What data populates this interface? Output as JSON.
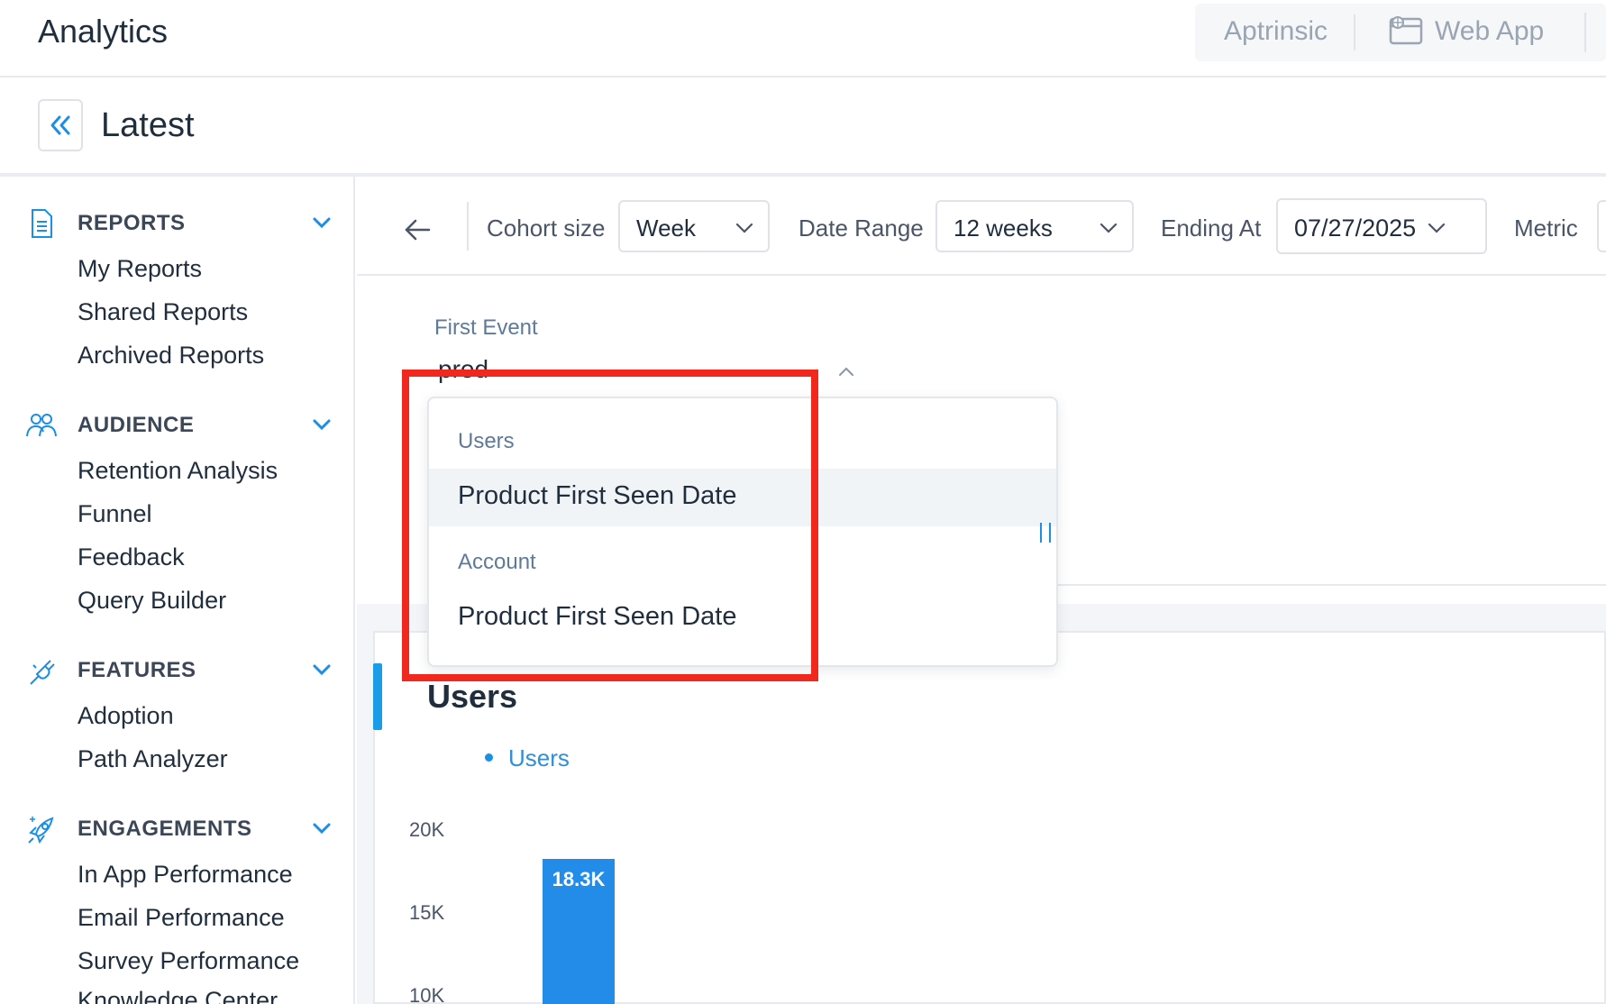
{
  "header": {
    "app_title": "Analytics",
    "product_switch": {
      "aptrinsic": "Aptrinsic",
      "web_app": "Web App",
      "web_app_icon": "browser-window-icon"
    }
  },
  "subheader": {
    "title": "Latest",
    "collapse_icon": "double-chevron-left-icon"
  },
  "sidebar": {
    "sections": [
      {
        "title": "REPORTS",
        "icon": "document-icon",
        "items": [
          "My Reports",
          "Shared Reports",
          "Archived Reports"
        ]
      },
      {
        "title": "AUDIENCE",
        "icon": "users-icon",
        "items": [
          "Retention Analysis",
          "Funnel",
          "Feedback",
          "Query Builder"
        ]
      },
      {
        "title": "FEATURES",
        "icon": "plug-icon",
        "items": [
          "Adoption",
          "Path Analyzer"
        ]
      },
      {
        "title": "ENGAGEMENTS",
        "icon": "rocket-icon",
        "items": [
          "In App Performance",
          "Email Performance",
          "Survey Performance",
          "Knowledge Center"
        ]
      }
    ]
  },
  "toolbar": {
    "cohort_size_label": "Cohort size",
    "cohort_size_value": "Week",
    "date_range_label": "Date Range",
    "date_range_value": "12 weeks",
    "ending_at_label": "Ending At",
    "ending_at_value": "07/27/2025",
    "metric_label": "Metric"
  },
  "filter": {
    "first_event_label": "First Event",
    "first_event_query": "prod"
  },
  "dropdown": {
    "groups": [
      {
        "label": "Users",
        "options": [
          "Product First Seen Date"
        ]
      },
      {
        "label": "Account",
        "options": [
          "Product First Seen Date"
        ]
      }
    ]
  },
  "chart_data": {
    "type": "bar",
    "title": "Users",
    "series": [
      {
        "name": "Users",
        "values": [
          18300
        ]
      }
    ],
    "bar_labels": [
      "18.3K"
    ],
    "y_ticks": [
      "20K",
      "15K",
      "10K"
    ],
    "ylim": [
      0,
      20000
    ],
    "colors": {
      "bar": "#238ce8"
    }
  },
  "colors": {
    "accent": "#1b9ce8",
    "highlight": "#f0281e"
  }
}
